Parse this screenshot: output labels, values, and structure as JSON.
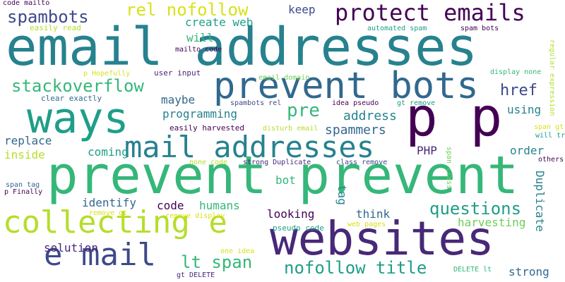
{
  "palette": {
    "dark_purple": "#440154",
    "purple": "#482878",
    "indigo": "#3e4989",
    "blue": "#31688e",
    "teal": "#26828e",
    "cyan": "#1f9e89",
    "green": "#35b779",
    "light_green": "#6ece58",
    "lime": "#b5de2b",
    "yellow": "#d8e219"
  },
  "words": [
    {
      "text": "email addresses",
      "color": "#26828e"
    },
    {
      "text": "prevent prevent",
      "color": "#35b779"
    },
    {
      "text": "ways",
      "color": "#1f9e89"
    },
    {
      "text": "p p",
      "color": "#440154"
    },
    {
      "text": "websites",
      "color": "#482878"
    },
    {
      "text": "prevent bots",
      "color": "#31688e"
    },
    {
      "text": "collecting e",
      "color": "#b5de2b"
    },
    {
      "text": "mail addresses",
      "color": "#26828e"
    },
    {
      "text": "e mail",
      "color": "#3e4989"
    },
    {
      "text": "protect emails",
      "color": "#440154"
    },
    {
      "text": "rel nofollow",
      "color": "#d8e219"
    },
    {
      "text": "spambots",
      "color": "#3e4989"
    },
    {
      "text": "stackoverflow",
      "color": "#35b779"
    },
    {
      "text": "nofollow title",
      "color": "#1f9e89"
    },
    {
      "text": "questions",
      "color": "#1f9e89"
    },
    {
      "text": "lt span",
      "color": "#35b779"
    },
    {
      "text": "href",
      "color": "#3e4989"
    },
    {
      "text": "pre",
      "color": "#35b779"
    },
    {
      "text": "keep",
      "color": "#3e4989"
    },
    {
      "text": "create web",
      "color": "#1f9e89"
    },
    {
      "text": "will",
      "color": "#35b779"
    },
    {
      "text": "maybe",
      "color": "#31688e"
    },
    {
      "text": "programming",
      "color": "#26828e"
    },
    {
      "text": "address",
      "color": "#26828e"
    },
    {
      "text": "spammers",
      "color": "#31688e"
    },
    {
      "text": "using",
      "color": "#26828e"
    },
    {
      "text": "replace",
      "color": "#31688e"
    },
    {
      "text": "coming",
      "color": "#1f9e89"
    },
    {
      "text": "inside",
      "color": "#b5de2b"
    },
    {
      "text": "PHP",
      "color": "#482878"
    },
    {
      "text": "order",
      "color": "#26828e"
    },
    {
      "text": "identify",
      "color": "#31688e"
    },
    {
      "text": "code",
      "color": "#440154"
    },
    {
      "text": "humans",
      "color": "#35b779"
    },
    {
      "text": "bot",
      "color": "#35b779"
    },
    {
      "text": "tag",
      "color": "#26828e"
    },
    {
      "text": "looking",
      "color": "#440154"
    },
    {
      "text": "think",
      "color": "#31688e"
    },
    {
      "text": "harvesting",
      "color": "#6ece58"
    },
    {
      "text": "Duplicate",
      "color": "#26828e"
    },
    {
      "text": "solution",
      "color": "#482878"
    },
    {
      "text": "strong",
      "color": "#31688e"
    },
    {
      "text": "code mailto",
      "color": "#440154"
    },
    {
      "text": "easily read",
      "color": "#b5de2b"
    },
    {
      "text": "automated spam",
      "color": "#1f9e89"
    },
    {
      "text": "spam bots",
      "color": "#440154"
    },
    {
      "text": "mailto code",
      "color": "#440154"
    },
    {
      "text": "regular expression",
      "color": "#b5de2b"
    },
    {
      "text": "p Hopefully",
      "color": "#d8e219"
    },
    {
      "text": "user input",
      "color": "#482878"
    },
    {
      "text": "email domain",
      "color": "#6ece58"
    },
    {
      "text": "display none",
      "color": "#35b779"
    },
    {
      "text": "clear exactly",
      "color": "#31688e"
    },
    {
      "text": "idea pseudo",
      "color": "#440154"
    },
    {
      "text": "gt remove",
      "color": "#1f9e89"
    },
    {
      "text": "spambots rel",
      "color": "#3e4989"
    },
    {
      "text": "easily harvested",
      "color": "#440154"
    },
    {
      "text": "disturb email",
      "color": "#b5de2b"
    },
    {
      "text": "span gt",
      "color": "#d8e219"
    },
    {
      "text": "will trip",
      "color": "#1f9e89"
    },
    {
      "text": "span class",
      "color": "#6ece58"
    },
    {
      "text": "none code",
      "color": "#b5de2b"
    },
    {
      "text": "strong Duplicate",
      "color": "#482878"
    },
    {
      "text": "class remove",
      "color": "#3e4989"
    },
    {
      "text": "others p",
      "color": "#440154"
    },
    {
      "text": "span tag",
      "color": "#31688e"
    },
    {
      "text": "p Finally",
      "color": "#440154"
    },
    {
      "text": "remove gt",
      "color": "#d8e219"
    },
    {
      "text": "remove display",
      "color": "#d8e219"
    },
    {
      "text": "pseudo code",
      "color": "#1f9e89"
    },
    {
      "text": "web pages",
      "color": "#d8e219"
    },
    {
      "text": "one idea",
      "color": "#d8e219"
    },
    {
      "text": "gt DELETE",
      "color": "#482878"
    },
    {
      "text": "DELETE lt",
      "color": "#35b779"
    }
  ]
}
